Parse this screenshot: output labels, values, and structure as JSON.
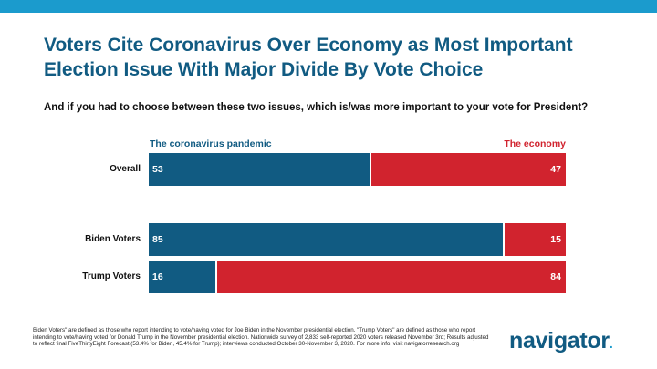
{
  "title": "Voters Cite Coronavirus Over Economy as Most Important Election Issue With Major Divide By Vote Choice",
  "question": "And if you had to choose between these two issues, which is/was more important to your vote for President?",
  "footnote": "Biden Voters\" are defined as those who report intending to vote/having voted for Joe Biden in the November presidential election. \"Trump Voters\" are defined as those who report intending to vote/having voted for Donald Trump in the November presidential election. Nationwide survey of 2,833 self-reported 2020 voters released November 3rd; Results adjusted to reflect final FiveThirtyEight Forecast (53.4% for Biden, 45.4% for Trump); interviews conducted October 30-November 3, 2020. For more info, visit navigatorresearch.org",
  "logo": "navigator",
  "colors": {
    "blue": "#115b82",
    "red": "#d1232e",
    "band": "#1b9bcd"
  },
  "chart_data": {
    "type": "bar",
    "orientation": "horizontal-stacked-100",
    "categories": [
      "Overall",
      "Biden Voters",
      "Trump Voters"
    ],
    "series": [
      {
        "name": "The coronavirus pandemic",
        "values": [
          53,
          85,
          16
        ]
      },
      {
        "name": "The economy",
        "values": [
          47,
          15,
          84
        ]
      }
    ],
    "xlim": [
      0,
      100
    ]
  }
}
